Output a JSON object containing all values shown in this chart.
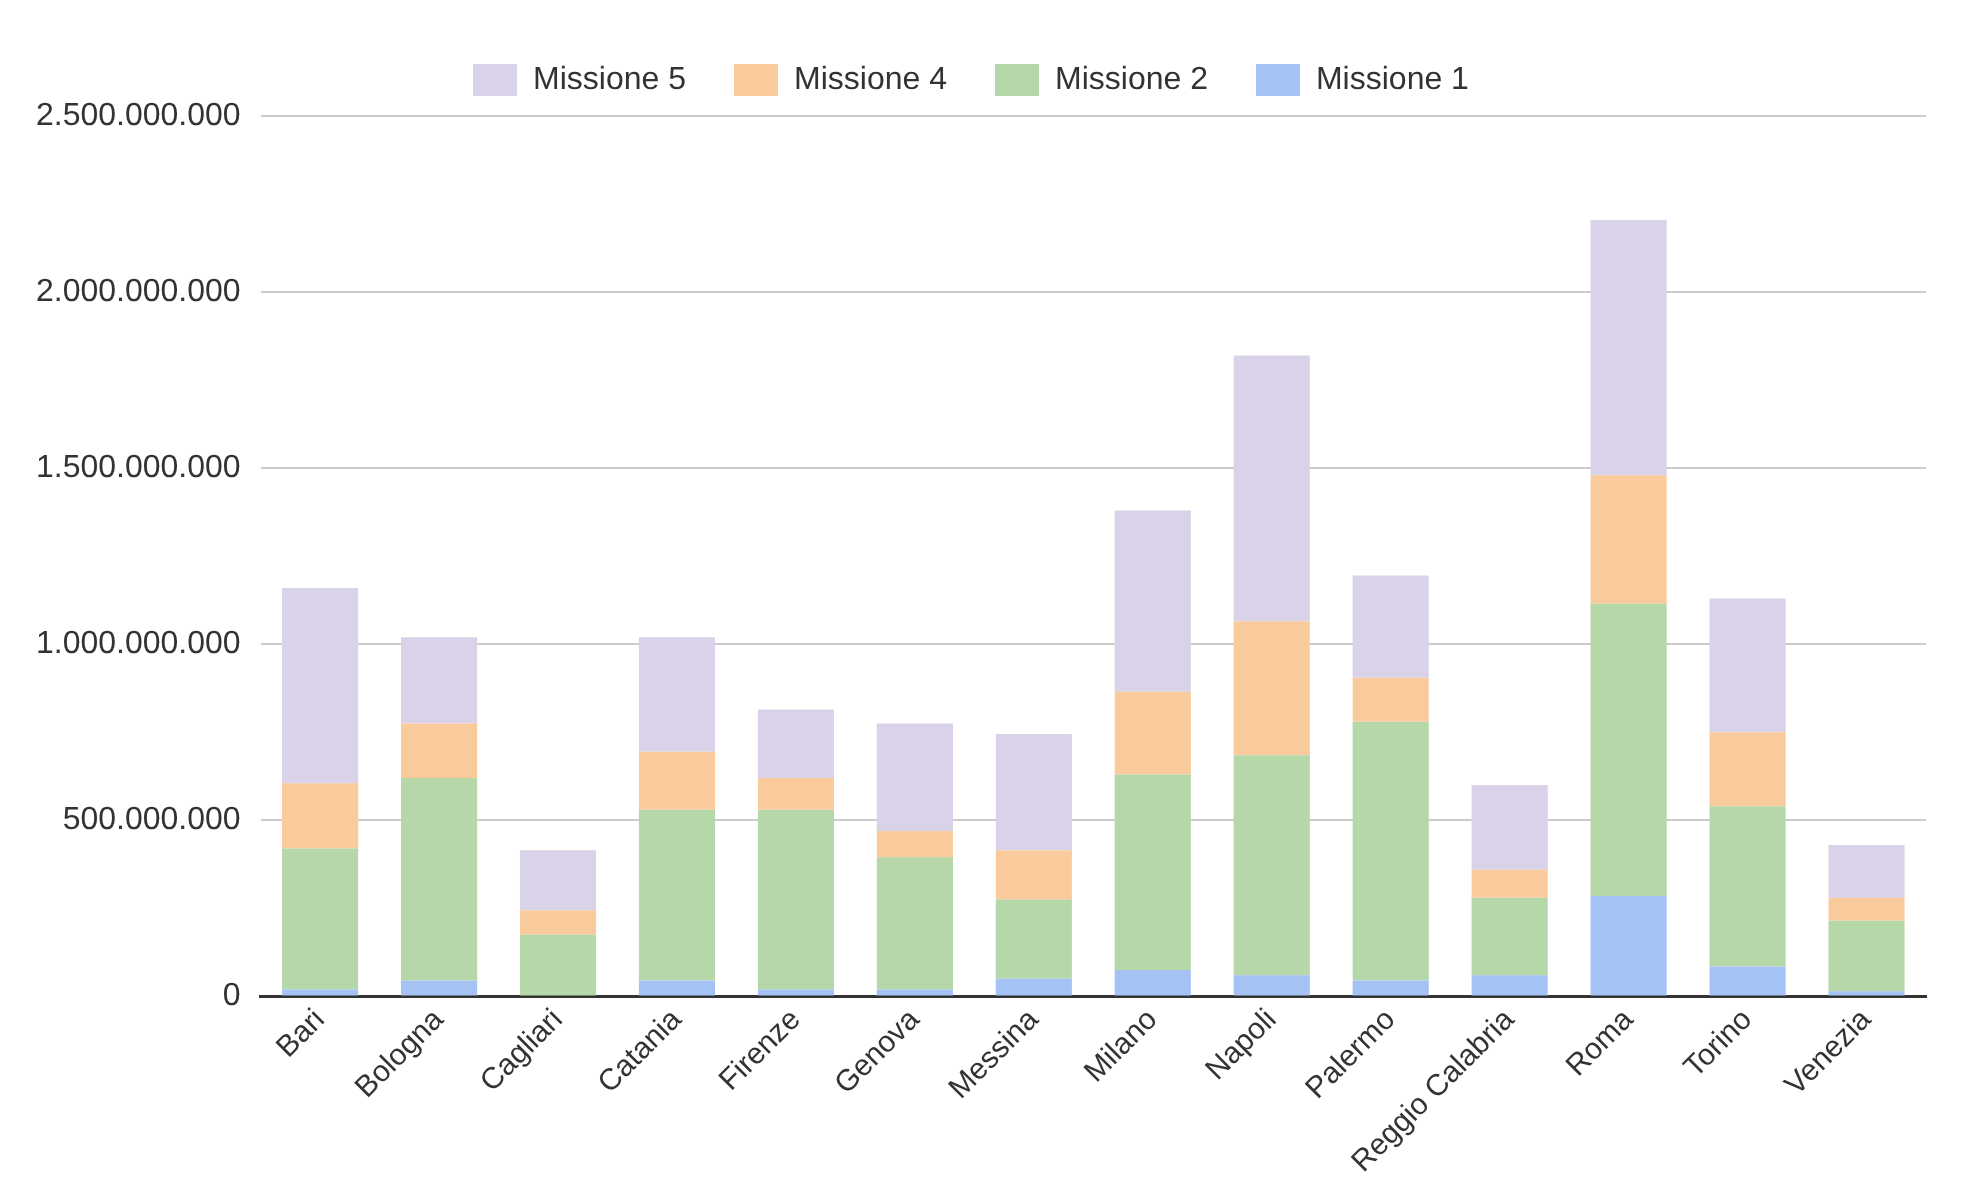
{
  "chart_data": {
    "type": "bar",
    "stacked": true,
    "legend": "top",
    "grid": "y",
    "categories": [
      "Bari",
      "Bologna",
      "Cagliari",
      "Catania",
      "Firenze",
      "Genova",
      "Messina",
      "Milano",
      "Napoli",
      "Palermo",
      "Reggio Calabria",
      "Roma",
      "Torino",
      "Venezia"
    ],
    "series": [
      {
        "name": "Missione 1",
        "color": "#a4c2f4",
        "values": [
          20000000,
          45000000,
          null,
          45000000,
          20000000,
          20000000,
          50000000,
          75000000,
          60000000,
          45000000,
          60000000,
          285000000,
          85000000,
          15000000
        ]
      },
      {
        "name": "Missione 2",
        "color": "#b6d7a8",
        "values": [
          400000000,
          575000000,
          175000000,
          485000000,
          510000000,
          375000000,
          225000000,
          555000000,
          625000000,
          735000000,
          220000000,
          830000000,
          455000000,
          200000000
        ]
      },
      {
        "name": "Missione 4",
        "color": "#f9cb9c",
        "values": [
          185000000,
          155000000,
          70000000,
          165000000,
          90000000,
          75000000,
          140000000,
          235000000,
          380000000,
          125000000,
          80000000,
          365000000,
          210000000,
          65000000
        ]
      },
      {
        "name": "Missione 5",
        "color": "#d9d2e9",
        "values": [
          555000000,
          245000000,
          170000000,
          325000000,
          195000000,
          305000000,
          330000000,
          515000000,
          755000000,
          290000000,
          240000000,
          725000000,
          380000000,
          150000000
        ]
      }
    ],
    "ylim": [
      0,
      2500000000
    ],
    "yticks": [
      {
        "value": 0,
        "label": "0"
      },
      {
        "value": 500000000,
        "label": "500.000.000"
      },
      {
        "value": 1000000000,
        "label": "1.000.000.000"
      },
      {
        "value": 1500000000,
        "label": "1.500.000.000"
      },
      {
        "value": 2000000000,
        "label": "2.000.000.000"
      },
      {
        "value": 2500000000,
        "label": "2.500.000.000"
      }
    ]
  }
}
